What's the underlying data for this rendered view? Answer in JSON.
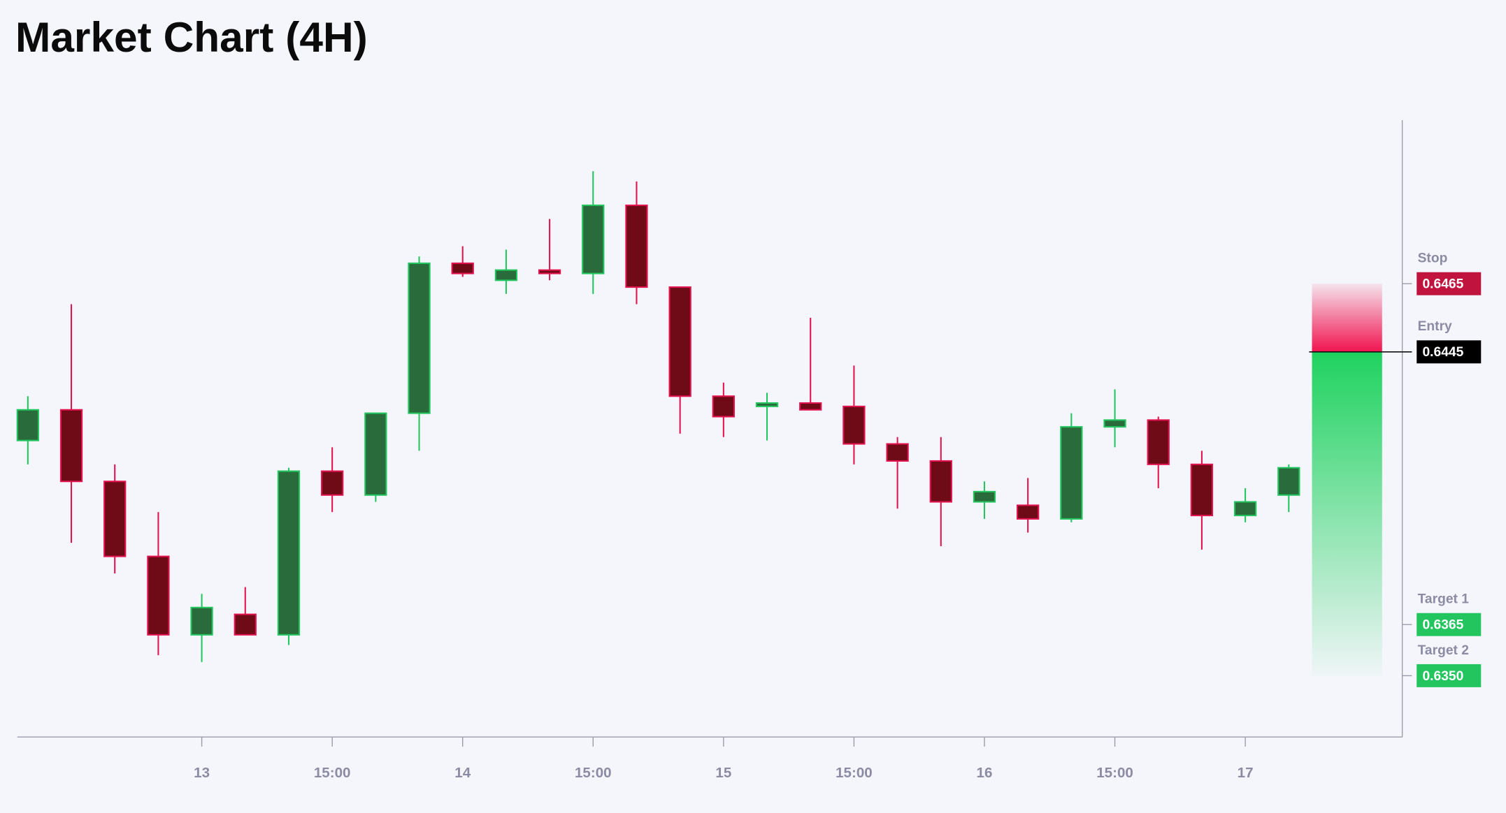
{
  "chart_data": {
    "type": "candlestick",
    "title": "Market Chart (4H)",
    "categories": [
      null,
      null,
      null,
      null,
      "13",
      null,
      null,
      "15:00",
      null,
      null,
      "14",
      null,
      null,
      "15:00",
      null,
      null,
      "15",
      null,
      null,
      "15:00",
      null,
      null,
      "16",
      null,
      null,
      "15:00",
      null,
      null,
      "17",
      null
    ],
    "open": [
      0.6419,
      0.6428,
      0.6407,
      0.6385,
      0.6362,
      0.6368,
      0.6362,
      0.641,
      0.6403,
      0.6427,
      0.6471,
      0.6466,
      0.6469,
      0.6468,
      0.6488,
      0.6464,
      0.6432,
      0.6429,
      0.643,
      0.6429,
      0.6418,
      0.6413,
      0.6401,
      0.64,
      0.6396,
      0.6423,
      0.6425,
      0.6412,
      0.6397,
      0.6403
    ],
    "high": [
      0.6432,
      0.6459,
      0.6412,
      0.6398,
      0.6374,
      0.6376,
      0.6411,
      0.6417,
      0.6427,
      0.6473,
      0.6476,
      0.6475,
      0.6484,
      0.6498,
      0.6495,
      0.6464,
      0.6436,
      0.6433,
      0.6455,
      0.6441,
      0.642,
      0.642,
      0.6407,
      0.6408,
      0.6427,
      0.6434,
      0.6426,
      0.6416,
      0.6405,
      0.6412
    ],
    "low": [
      0.6412,
      0.6389,
      0.638,
      0.6356,
      0.6354,
      0.6362,
      0.6359,
      0.6398,
      0.6401,
      0.6416,
      0.6467,
      0.6462,
      0.6466,
      0.6462,
      0.6459,
      0.6421,
      0.642,
      0.6419,
      0.6428,
      0.6412,
      0.6399,
      0.6388,
      0.6396,
      0.6392,
      0.6395,
      0.6417,
      0.6405,
      0.6387,
      0.6395,
      0.6398
    ],
    "close": [
      0.6428,
      0.6407,
      0.6385,
      0.6362,
      0.637,
      0.6362,
      0.641,
      0.6403,
      0.6427,
      0.6471,
      0.6468,
      0.6469,
      0.6468,
      0.6488,
      0.6464,
      0.6432,
      0.6426,
      0.643,
      0.6428,
      0.6418,
      0.6413,
      0.6401,
      0.6404,
      0.6396,
      0.6423,
      0.6425,
      0.6412,
      0.6397,
      0.6401,
      0.6411
    ],
    "up_color": "#2a6b3c",
    "down_color": "#6e0b16",
    "ylim": [
      0.6332,
      0.6513
    ],
    "levels": [
      {
        "name": "Stop",
        "value": 0.6465,
        "color": "#c0143f"
      },
      {
        "name": "Entry",
        "value": 0.6445,
        "color": "#000000"
      },
      {
        "name": "Target 1",
        "value": 0.6365,
        "color": "#22c55e"
      },
      {
        "name": "Target 2",
        "value": {
          "value": 0.635,
          "label": "0.6350"
        },
        "color": "#22c55e"
      }
    ]
  }
}
